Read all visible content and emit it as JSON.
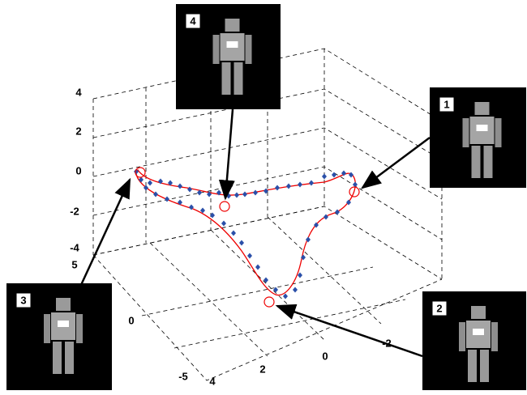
{
  "axes": {
    "z_ticks": [
      "4",
      "2",
      "0",
      "-2",
      "-4"
    ],
    "y_ticks": [
      "5",
      "0",
      "-5"
    ],
    "x_ticks": [
      "4",
      "2",
      "0",
      "-2"
    ]
  },
  "panels": [
    {
      "label": "1"
    },
    {
      "label": "2"
    },
    {
      "label": "3"
    },
    {
      "label": "4"
    }
  ]
}
